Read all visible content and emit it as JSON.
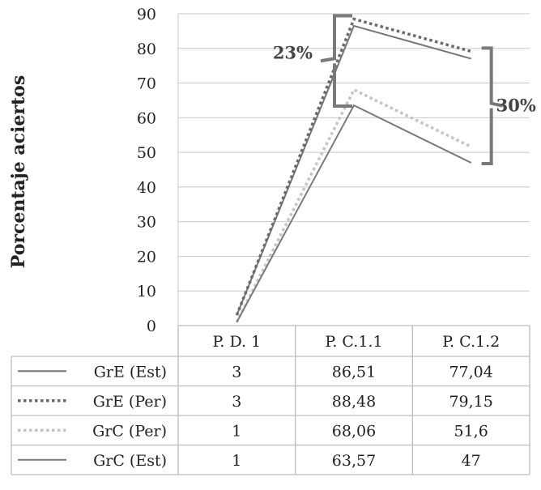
{
  "chart_data": {
    "type": "line",
    "title": "",
    "xlabel": "",
    "ylabel": "Porcentaje aciertos",
    "ylim": [
      0,
      90
    ],
    "yticks": [
      0,
      10,
      20,
      30,
      40,
      50,
      60,
      70,
      80,
      90
    ],
    "categories": [
      "P. D. 1",
      "P. C.1.1",
      "P. C.1.2"
    ],
    "series": [
      {
        "name": "GrE (Est)",
        "values": [
          3,
          86.51,
          77.04
        ],
        "labels": [
          "3",
          "86,51",
          "77,04"
        ],
        "color": "#777777",
        "dash": "solid"
      },
      {
        "name": "GrE (Per)",
        "values": [
          3,
          88.48,
          79.15
        ],
        "labels": [
          "3",
          "88,48",
          "79,15"
        ],
        "color": "#6a6a6a",
        "dash": "dotted"
      },
      {
        "name": "GrC (Per)",
        "values": [
          1,
          68.06,
          51.6
        ],
        "labels": [
          "1",
          "68,06",
          "51,6"
        ],
        "color": "#c4c4c4",
        "dash": "dotted"
      },
      {
        "name": "GrC (Est)",
        "values": [
          1,
          63.57,
          47
        ],
        "labels": [
          "1",
          "63,57",
          "47"
        ],
        "color": "#7a7a7a",
        "dash": "solid"
      }
    ],
    "annotations": [
      {
        "text": "23%",
        "category": "P. C.1.1",
        "from": 63.57,
        "to": 88.48
      },
      {
        "text": "30%",
        "category": "P. C.1.2",
        "from": 47,
        "to": 79.15
      }
    ],
    "grid": true,
    "legend": "data-table"
  }
}
